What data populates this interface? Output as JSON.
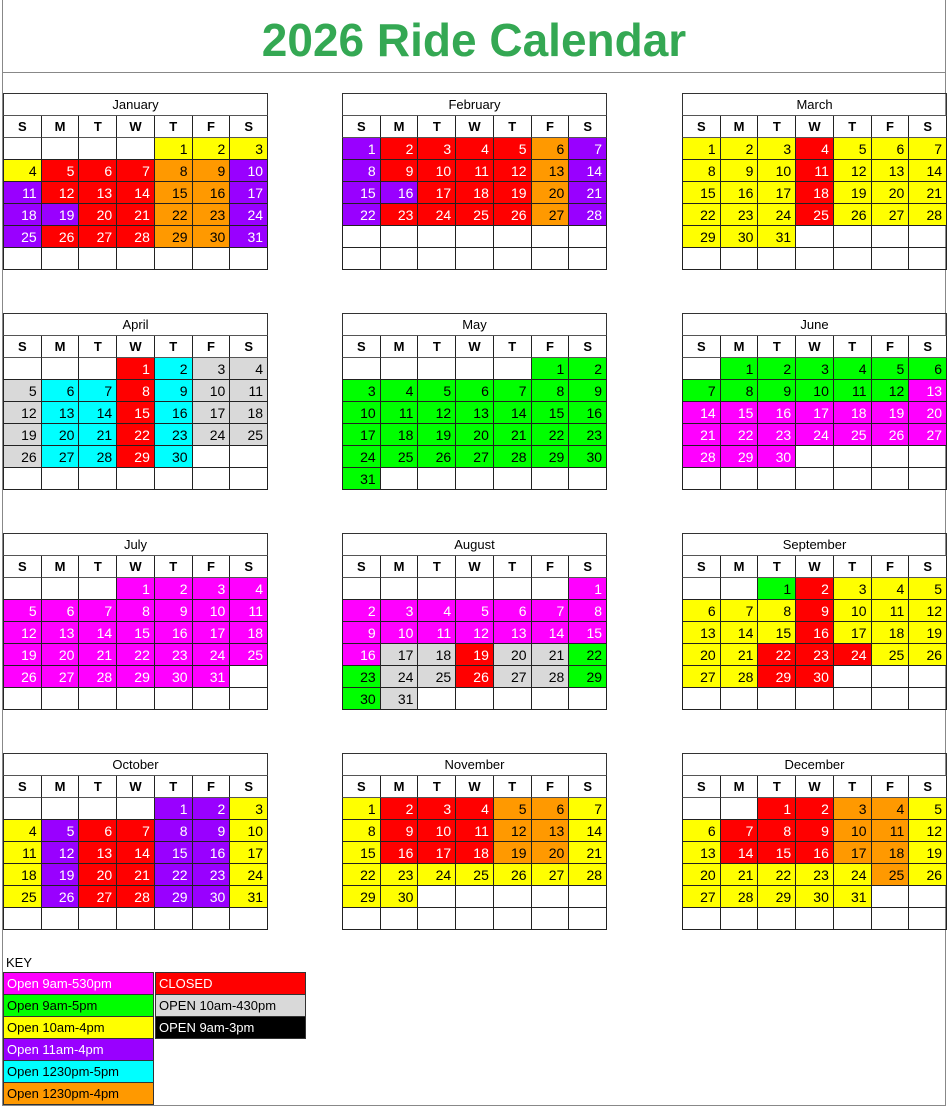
{
  "title": "2026 Ride Calendar",
  "title_color": "#34a853",
  "weekdays": [
    "S",
    "M",
    "T",
    "W",
    "T",
    "F",
    "S"
  ],
  "colors": {
    "M": {
      "bg": "#ff00ff",
      "fg": "#ffffff"
    },
    "G": {
      "bg": "#00ff00",
      "fg": "#000000"
    },
    "Y": {
      "bg": "#ffff00",
      "fg": "#000000"
    },
    "P": {
      "bg": "#9900ff",
      "fg": "#ffffff"
    },
    "C": {
      "bg": "#00ffff",
      "fg": "#000000"
    },
    "O": {
      "bg": "#ff9900",
      "fg": "#000000"
    },
    "R": {
      "bg": "#ff0000",
      "fg": "#ffffff"
    },
    "L": {
      "bg": "#d9d9d9",
      "fg": "#000000"
    },
    "K": {
      "bg": "#000000",
      "fg": "#ffffff"
    }
  },
  "key": {
    "label": "KEY",
    "left": [
      {
        "code": "M",
        "label": "Open 9am-530pm"
      },
      {
        "code": "G",
        "label": "Open 9am-5pm"
      },
      {
        "code": "Y",
        "label": "Open 10am-4pm"
      },
      {
        "code": "P",
        "label": "Open 11am-4pm"
      },
      {
        "code": "C",
        "label": "Open 1230pm-5pm"
      },
      {
        "code": "O",
        "label": "Open 1230pm-4pm"
      }
    ],
    "right": [
      {
        "code": "R",
        "label": "CLOSED"
      },
      {
        "code": "L",
        "label": "OPEN 10am-430pm"
      },
      {
        "code": "K",
        "label": "OPEN 9am-3pm"
      }
    ]
  },
  "months": [
    {
      "name": "January",
      "days": [
        [
          1,
          "Y"
        ],
        [
          2,
          "Y"
        ],
        [
          3,
          "Y"
        ],
        [
          4,
          "Y"
        ],
        [
          5,
          "R"
        ],
        [
          6,
          "R"
        ],
        [
          7,
          "R"
        ],
        [
          8,
          "O"
        ],
        [
          9,
          "O"
        ],
        [
          10,
          "P"
        ],
        [
          11,
          "P"
        ],
        [
          12,
          "R"
        ],
        [
          13,
          "R"
        ],
        [
          14,
          "R"
        ],
        [
          15,
          "O"
        ],
        [
          16,
          "O"
        ],
        [
          17,
          "P"
        ],
        [
          18,
          "P"
        ],
        [
          19,
          "P"
        ],
        [
          20,
          "R"
        ],
        [
          21,
          "R"
        ],
        [
          22,
          "O"
        ],
        [
          23,
          "O"
        ],
        [
          24,
          "P"
        ],
        [
          25,
          "P"
        ],
        [
          26,
          "R"
        ],
        [
          27,
          "R"
        ],
        [
          28,
          "R"
        ],
        [
          29,
          "O"
        ],
        [
          30,
          "O"
        ],
        [
          31,
          "P"
        ]
      ]
    },
    {
      "name": "February",
      "days": [
        [
          1,
          "P"
        ],
        [
          2,
          "R"
        ],
        [
          3,
          "R"
        ],
        [
          4,
          "R"
        ],
        [
          5,
          "R"
        ],
        [
          6,
          "O"
        ],
        [
          7,
          "P"
        ],
        [
          8,
          "P"
        ],
        [
          9,
          "R"
        ],
        [
          10,
          "R"
        ],
        [
          11,
          "R"
        ],
        [
          12,
          "R"
        ],
        [
          13,
          "O"
        ],
        [
          14,
          "P"
        ],
        [
          15,
          "P"
        ],
        [
          16,
          "P"
        ],
        [
          17,
          "R"
        ],
        [
          18,
          "R"
        ],
        [
          19,
          "R"
        ],
        [
          20,
          "O"
        ],
        [
          21,
          "P"
        ],
        [
          22,
          "P"
        ],
        [
          23,
          "R"
        ],
        [
          24,
          "R"
        ],
        [
          25,
          "R"
        ],
        [
          26,
          "R"
        ],
        [
          27,
          "O"
        ],
        [
          28,
          "P"
        ]
      ]
    },
    {
      "name": "March",
      "days": [
        [
          1,
          "Y"
        ],
        [
          2,
          "Y"
        ],
        [
          3,
          "Y"
        ],
        [
          4,
          "R"
        ],
        [
          5,
          "Y"
        ],
        [
          6,
          "Y"
        ],
        [
          7,
          "Y"
        ],
        [
          8,
          "Y"
        ],
        [
          9,
          "Y"
        ],
        [
          10,
          "Y"
        ],
        [
          11,
          "R"
        ],
        [
          12,
          "Y"
        ],
        [
          13,
          "Y"
        ],
        [
          14,
          "Y"
        ],
        [
          15,
          "Y"
        ],
        [
          16,
          "Y"
        ],
        [
          17,
          "Y"
        ],
        [
          18,
          "R"
        ],
        [
          19,
          "Y"
        ],
        [
          20,
          "Y"
        ],
        [
          21,
          "Y"
        ],
        [
          22,
          "Y"
        ],
        [
          23,
          "Y"
        ],
        [
          24,
          "Y"
        ],
        [
          25,
          "R"
        ],
        [
          26,
          "Y"
        ],
        [
          27,
          "Y"
        ],
        [
          28,
          "Y"
        ],
        [
          29,
          "Y"
        ],
        [
          30,
          "Y"
        ],
        [
          31,
          "Y"
        ]
      ]
    },
    {
      "name": "April",
      "days": [
        [
          1,
          "R"
        ],
        [
          2,
          "C"
        ],
        [
          3,
          "L"
        ],
        [
          4,
          "L"
        ],
        [
          5,
          "L"
        ],
        [
          6,
          "C"
        ],
        [
          7,
          "C"
        ],
        [
          8,
          "R"
        ],
        [
          9,
          "C"
        ],
        [
          10,
          "L"
        ],
        [
          11,
          "L"
        ],
        [
          12,
          "L"
        ],
        [
          13,
          "C"
        ],
        [
          14,
          "C"
        ],
        [
          15,
          "R"
        ],
        [
          16,
          "C"
        ],
        [
          17,
          "L"
        ],
        [
          18,
          "L"
        ],
        [
          19,
          "L"
        ],
        [
          20,
          "C"
        ],
        [
          21,
          "C"
        ],
        [
          22,
          "R"
        ],
        [
          23,
          "C"
        ],
        [
          24,
          "L"
        ],
        [
          25,
          "L"
        ],
        [
          26,
          "L"
        ],
        [
          27,
          "C"
        ],
        [
          28,
          "C"
        ],
        [
          29,
          "R"
        ],
        [
          30,
          "C"
        ]
      ]
    },
    {
      "name": "May",
      "days": [
        [
          1,
          "G"
        ],
        [
          2,
          "G"
        ],
        [
          3,
          "G"
        ],
        [
          4,
          "G"
        ],
        [
          5,
          "G"
        ],
        [
          6,
          "G"
        ],
        [
          7,
          "G"
        ],
        [
          8,
          "G"
        ],
        [
          9,
          "G"
        ],
        [
          10,
          "G"
        ],
        [
          11,
          "G"
        ],
        [
          12,
          "G"
        ],
        [
          13,
          "G"
        ],
        [
          14,
          "G"
        ],
        [
          15,
          "G"
        ],
        [
          16,
          "G"
        ],
        [
          17,
          "G"
        ],
        [
          18,
          "G"
        ],
        [
          19,
          "G"
        ],
        [
          20,
          "G"
        ],
        [
          21,
          "G"
        ],
        [
          22,
          "G"
        ],
        [
          23,
          "G"
        ],
        [
          24,
          "G"
        ],
        [
          25,
          "G"
        ],
        [
          26,
          "G"
        ],
        [
          27,
          "G"
        ],
        [
          28,
          "G"
        ],
        [
          29,
          "G"
        ],
        [
          30,
          "G"
        ],
        [
          31,
          "G"
        ]
      ]
    },
    {
      "name": "June",
      "days": [
        [
          1,
          "G"
        ],
        [
          2,
          "G"
        ],
        [
          3,
          "G"
        ],
        [
          4,
          "G"
        ],
        [
          5,
          "G"
        ],
        [
          6,
          "G"
        ],
        [
          7,
          "G"
        ],
        [
          8,
          "G"
        ],
        [
          9,
          "G"
        ],
        [
          10,
          "G"
        ],
        [
          11,
          "G"
        ],
        [
          12,
          "G"
        ],
        [
          13,
          "M"
        ],
        [
          14,
          "M"
        ],
        [
          15,
          "M"
        ],
        [
          16,
          "M"
        ],
        [
          17,
          "M"
        ],
        [
          18,
          "M"
        ],
        [
          19,
          "M"
        ],
        [
          20,
          "M"
        ],
        [
          21,
          "M"
        ],
        [
          22,
          "M"
        ],
        [
          23,
          "M"
        ],
        [
          24,
          "M"
        ],
        [
          25,
          "M"
        ],
        [
          26,
          "M"
        ],
        [
          27,
          "M"
        ],
        [
          28,
          "M"
        ],
        [
          29,
          "M"
        ],
        [
          30,
          "M"
        ]
      ]
    },
    {
      "name": "July",
      "days": [
        [
          1,
          "M"
        ],
        [
          2,
          "M"
        ],
        [
          3,
          "M"
        ],
        [
          4,
          "M"
        ],
        [
          5,
          "M"
        ],
        [
          6,
          "M"
        ],
        [
          7,
          "M"
        ],
        [
          8,
          "M"
        ],
        [
          9,
          "M"
        ],
        [
          10,
          "M"
        ],
        [
          11,
          "M"
        ],
        [
          12,
          "M"
        ],
        [
          13,
          "M"
        ],
        [
          14,
          "M"
        ],
        [
          15,
          "M"
        ],
        [
          16,
          "M"
        ],
        [
          17,
          "M"
        ],
        [
          18,
          "M"
        ],
        [
          19,
          "M"
        ],
        [
          20,
          "M"
        ],
        [
          21,
          "M"
        ],
        [
          22,
          "M"
        ],
        [
          23,
          "M"
        ],
        [
          24,
          "M"
        ],
        [
          25,
          "M"
        ],
        [
          26,
          "M"
        ],
        [
          27,
          "M"
        ],
        [
          28,
          "M"
        ],
        [
          29,
          "M"
        ],
        [
          30,
          "M"
        ],
        [
          31,
          "M"
        ]
      ]
    },
    {
      "name": "August",
      "days": [
        [
          1,
          "M"
        ],
        [
          2,
          "M"
        ],
        [
          3,
          "M"
        ],
        [
          4,
          "M"
        ],
        [
          5,
          "M"
        ],
        [
          6,
          "M"
        ],
        [
          7,
          "M"
        ],
        [
          8,
          "M"
        ],
        [
          9,
          "M"
        ],
        [
          10,
          "M"
        ],
        [
          11,
          "M"
        ],
        [
          12,
          "M"
        ],
        [
          13,
          "M"
        ],
        [
          14,
          "M"
        ],
        [
          15,
          "M"
        ],
        [
          16,
          "M"
        ],
        [
          17,
          "L"
        ],
        [
          18,
          "L"
        ],
        [
          19,
          "R"
        ],
        [
          20,
          "L"
        ],
        [
          21,
          "L"
        ],
        [
          22,
          "G"
        ],
        [
          23,
          "G"
        ],
        [
          24,
          "L"
        ],
        [
          25,
          "L"
        ],
        [
          26,
          "R"
        ],
        [
          27,
          "L"
        ],
        [
          28,
          "L"
        ],
        [
          29,
          "G"
        ],
        [
          30,
          "G"
        ],
        [
          31,
          "L"
        ]
      ]
    },
    {
      "name": "September",
      "days": [
        [
          1,
          "G"
        ],
        [
          2,
          "R"
        ],
        [
          3,
          "Y"
        ],
        [
          4,
          "Y"
        ],
        [
          5,
          "Y"
        ],
        [
          6,
          "Y"
        ],
        [
          7,
          "Y"
        ],
        [
          8,
          "Y"
        ],
        [
          9,
          "R"
        ],
        [
          10,
          "Y"
        ],
        [
          11,
          "Y"
        ],
        [
          12,
          "Y"
        ],
        [
          13,
          "Y"
        ],
        [
          14,
          "Y"
        ],
        [
          15,
          "Y"
        ],
        [
          16,
          "R"
        ],
        [
          17,
          "Y"
        ],
        [
          18,
          "Y"
        ],
        [
          19,
          "Y"
        ],
        [
          20,
          "Y"
        ],
        [
          21,
          "Y"
        ],
        [
          22,
          "R"
        ],
        [
          23,
          "R"
        ],
        [
          24,
          "R"
        ],
        [
          25,
          "Y"
        ],
        [
          26,
          "Y"
        ],
        [
          27,
          "Y"
        ],
        [
          28,
          "Y"
        ],
        [
          29,
          "R"
        ],
        [
          30,
          "R"
        ]
      ]
    },
    {
      "name": "October",
      "days": [
        [
          1,
          "P"
        ],
        [
          2,
          "P"
        ],
        [
          3,
          "Y"
        ],
        [
          4,
          "Y"
        ],
        [
          5,
          "P"
        ],
        [
          6,
          "R"
        ],
        [
          7,
          "R"
        ],
        [
          8,
          "P"
        ],
        [
          9,
          "P"
        ],
        [
          10,
          "Y"
        ],
        [
          11,
          "Y"
        ],
        [
          12,
          "P"
        ],
        [
          13,
          "R"
        ],
        [
          14,
          "R"
        ],
        [
          15,
          "P"
        ],
        [
          16,
          "P"
        ],
        [
          17,
          "Y"
        ],
        [
          18,
          "Y"
        ],
        [
          19,
          "P"
        ],
        [
          20,
          "R"
        ],
        [
          21,
          "R"
        ],
        [
          22,
          "P"
        ],
        [
          23,
          "P"
        ],
        [
          24,
          "Y"
        ],
        [
          25,
          "Y"
        ],
        [
          26,
          "P"
        ],
        [
          27,
          "R"
        ],
        [
          28,
          "R"
        ],
        [
          29,
          "P"
        ],
        [
          30,
          "P"
        ],
        [
          31,
          "Y"
        ]
      ]
    },
    {
      "name": "November",
      "days": [
        [
          1,
          "Y"
        ],
        [
          2,
          "R"
        ],
        [
          3,
          "R"
        ],
        [
          4,
          "R"
        ],
        [
          5,
          "O"
        ],
        [
          6,
          "O"
        ],
        [
          7,
          "Y"
        ],
        [
          8,
          "Y"
        ],
        [
          9,
          "R"
        ],
        [
          10,
          "R"
        ],
        [
          11,
          "R"
        ],
        [
          12,
          "O"
        ],
        [
          13,
          "O"
        ],
        [
          14,
          "Y"
        ],
        [
          15,
          "Y"
        ],
        [
          16,
          "R"
        ],
        [
          17,
          "R"
        ],
        [
          18,
          "R"
        ],
        [
          19,
          "O"
        ],
        [
          20,
          "O"
        ],
        [
          21,
          "Y"
        ],
        [
          22,
          "Y"
        ],
        [
          23,
          "Y"
        ],
        [
          24,
          "Y"
        ],
        [
          25,
          "Y"
        ],
        [
          26,
          "Y"
        ],
        [
          27,
          "Y"
        ],
        [
          28,
          "Y"
        ],
        [
          29,
          "Y"
        ],
        [
          30,
          "Y"
        ]
      ]
    },
    {
      "name": "December",
      "days": [
        [
          1,
          "R"
        ],
        [
          2,
          "R"
        ],
        [
          3,
          "O"
        ],
        [
          4,
          "O"
        ],
        [
          5,
          "Y"
        ],
        [
          6,
          "Y"
        ],
        [
          7,
          "R"
        ],
        [
          8,
          "R"
        ],
        [
          9,
          "R"
        ],
        [
          10,
          "O"
        ],
        [
          11,
          "O"
        ],
        [
          12,
          "Y"
        ],
        [
          13,
          "Y"
        ],
        [
          14,
          "R"
        ],
        [
          15,
          "R"
        ],
        [
          16,
          "R"
        ],
        [
          17,
          "O"
        ],
        [
          18,
          "O"
        ],
        [
          19,
          "Y"
        ],
        [
          20,
          "Y"
        ],
        [
          21,
          "Y"
        ],
        [
          22,
          "Y"
        ],
        [
          23,
          "Y"
        ],
        [
          24,
          "Y"
        ],
        [
          25,
          "O"
        ],
        [
          26,
          "Y"
        ],
        [
          27,
          "Y"
        ],
        [
          28,
          "Y"
        ],
        [
          29,
          "Y"
        ],
        [
          30,
          "Y"
        ],
        [
          31,
          "Y"
        ]
      ]
    }
  ]
}
